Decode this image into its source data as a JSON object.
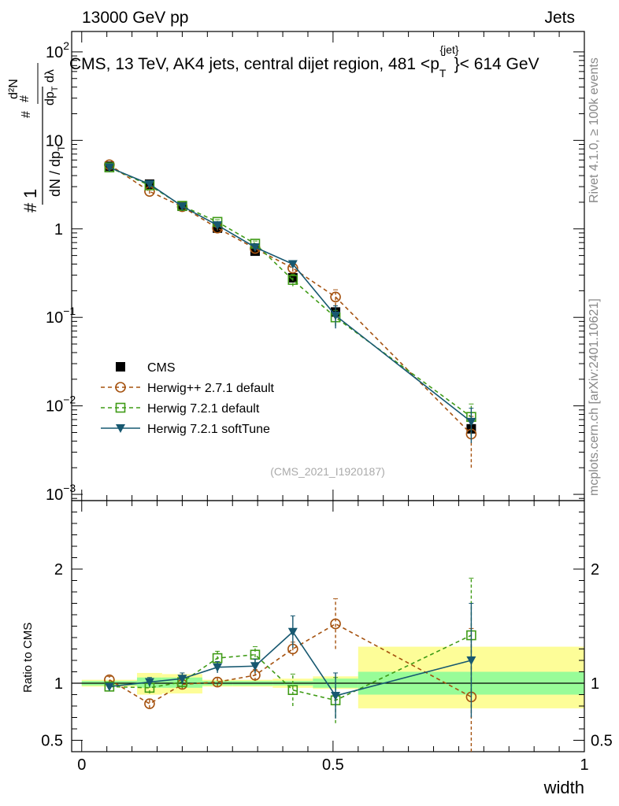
{
  "header": {
    "left": "13000 GeV pp",
    "right": "Jets",
    "title": "CMS, 13 TeV, AK4 jets, central dijet region, 481 <p_T^{jet}< 614 GeV",
    "title_main": "CMS, 13 TeV, AK4 jets, central dijet region, 481 <p",
    "title_sup": "{jet}",
    "title_sub": "T",
    "title_tail": "}< 614 GeV"
  },
  "side_labels": {
    "rivet": "Rivet 4.1.0, ≥ 100k events",
    "mcplots": "mcplots.cern.ch [arXiv:2401.10621]"
  },
  "watermark": "(CMS_2021_I1920187)",
  "colors": {
    "cms": "#000000",
    "herwigpp": "#a5520f",
    "herwig721": "#3f9b16",
    "softtune": "#175870",
    "band_inner": "#98fc98",
    "band_outer": "#fdfd98"
  },
  "chart_data": [
    {
      "type": "scatter",
      "panel": "main",
      "xlabel": "width",
      "ylabel": "1/dN/dp_T  d²N/dp_T dλ",
      "yscale": "log",
      "ylim": [
        0.00085,
        170
      ],
      "xlim": [
        -0.02,
        1.0
      ],
      "y_ticks": [
        {
          "v": 0.001,
          "label": "10",
          "exp": "−3"
        },
        {
          "v": 0.01,
          "label": "10",
          "exp": "−2"
        },
        {
          "v": 0.1,
          "label": "10",
          "exp": "−1"
        },
        {
          "v": 1,
          "label": "1",
          "exp": ""
        },
        {
          "v": 10,
          "label": "10",
          "exp": ""
        },
        {
          "v": 100,
          "label": "10",
          "exp": "2"
        }
      ],
      "x": [
        0.055,
        0.135,
        0.2,
        0.27,
        0.345,
        0.42,
        0.505,
        0.775
      ],
      "x_edges": [
        0.0,
        0.11,
        0.16,
        0.24,
        0.3,
        0.38,
        0.46,
        0.55,
        1.0
      ],
      "series": [
        {
          "name": "CMS",
          "key": "cms",
          "marker": "square",
          "values": [
            5.1,
            3.2,
            1.8,
            1.02,
            0.56,
            0.28,
            0.115,
            0.0055
          ]
        },
        {
          "name": "Herwig++ 2.7.1 default",
          "key": "herwigpp",
          "marker": "circle",
          "dash": true,
          "values": [
            5.3,
            2.65,
            1.78,
            1.02,
            0.6,
            0.36,
            0.17,
            0.0048
          ],
          "err": [
            0.25,
            0.15,
            0.08,
            0.06,
            0.04,
            0.03,
            0.035,
            0.0028
          ]
        },
        {
          "name": "Herwig 7.2.1 default",
          "key": "herwig721",
          "marker": "open-square",
          "dash": true,
          "values": [
            4.95,
            3.1,
            1.82,
            1.2,
            0.68,
            0.265,
            0.1,
            0.0075
          ],
          "err": [
            0.2,
            0.15,
            0.08,
            0.07,
            0.05,
            0.04,
            0.02,
            0.003
          ]
        },
        {
          "name": "Herwig 7.2.1 softTune",
          "key": "softtune",
          "marker": "triangle-down",
          "values": [
            4.95,
            3.2,
            1.8,
            1.1,
            0.62,
            0.4,
            0.105,
            0.0066
          ],
          "err": [
            0.2,
            0.15,
            0.08,
            0.06,
            0.04,
            0.035,
            0.03,
            0.0028
          ]
        }
      ]
    },
    {
      "type": "scatter",
      "panel": "ratio",
      "xlabel": "width",
      "ylabel": "Ratio to CMS",
      "ylim": [
        0.4,
        2.6
      ],
      "x_ticks": [
        {
          "v": 0,
          "label": "0"
        },
        {
          "v": 0.5,
          "label": "0.5"
        },
        {
          "v": 1,
          "label": "1"
        }
      ],
      "y_ticks": [
        {
          "v": 0.5,
          "label": "0.5"
        },
        {
          "v": 1,
          "label": "1"
        },
        {
          "v": 2,
          "label": "2"
        }
      ],
      "band_inner": [
        [
          0.98,
          1.02
        ],
        [
          0.96,
          1.05
        ],
        [
          0.96,
          1.05
        ],
        [
          0.98,
          1.02
        ],
        [
          0.98,
          1.02
        ],
        [
          0.98,
          1.02
        ],
        [
          0.96,
          1.04
        ],
        [
          0.9,
          1.1
        ]
      ],
      "band_outer": [
        [
          0.97,
          1.03
        ],
        [
          0.9,
          1.09
        ],
        [
          0.91,
          1.08
        ],
        [
          0.97,
          1.03
        ],
        [
          0.97,
          1.03
        ],
        [
          0.96,
          1.04
        ],
        [
          0.95,
          1.06
        ],
        [
          0.78,
          1.32
        ]
      ],
      "series": [
        {
          "name": "Herwig++ 2.7.1 default",
          "key": "herwigpp",
          "marker": "circle",
          "dash": true,
          "values": [
            1.03,
            0.82,
            0.99,
            1.01,
            1.07,
            1.3,
            1.52,
            0.88
          ],
          "err": [
            0.03,
            0.04,
            0.04,
            0.04,
            0.05,
            0.06,
            0.22,
            0.6
          ]
        },
        {
          "name": "Herwig 7.2.1 default",
          "key": "herwig721",
          "marker": "open-square",
          "dash": true,
          "values": [
            0.97,
            0.96,
            1.01,
            1.22,
            1.25,
            0.94,
            0.85,
            1.42
          ],
          "err": [
            0.03,
            0.05,
            0.05,
            0.06,
            0.07,
            0.14,
            0.2,
            0.5
          ]
        },
        {
          "name": "Herwig 7.2.1 softTune",
          "key": "softtune",
          "marker": "triangle-down",
          "values": [
            0.97,
            1.01,
            1.04,
            1.14,
            1.15,
            1.45,
            0.89,
            1.2
          ],
          "err": [
            0.03,
            0.04,
            0.05,
            0.05,
            0.06,
            0.14,
            0.2,
            0.5
          ]
        }
      ]
    }
  ]
}
